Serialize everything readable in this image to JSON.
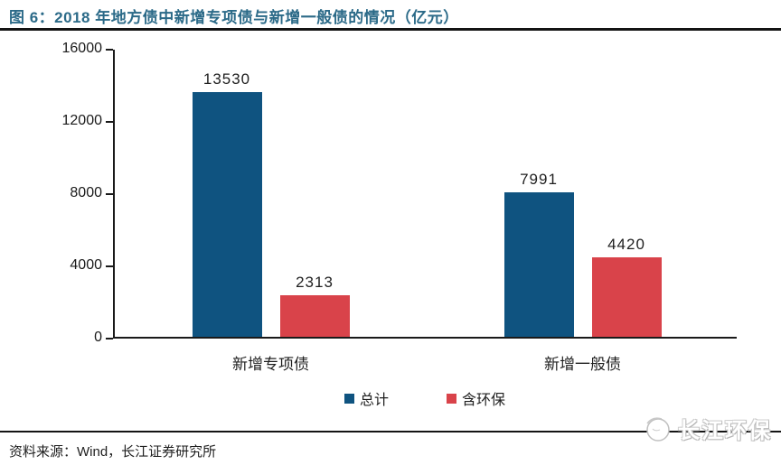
{
  "header": {
    "title": "图 6：2018 年地方债中新增专项债与新增一般债的情况（亿元）"
  },
  "footer": {
    "source": "资料来源：Wind，长江证券研究所",
    "watermark": "长江环保"
  },
  "colors": {
    "title": "#2b6a88",
    "series_total": "#0f5380",
    "series_env": "#d9434a",
    "axis": "#1a1a1a"
  },
  "chart_data": {
    "type": "bar",
    "categories": [
      "新增专项债",
      "新增一般债"
    ],
    "series": [
      {
        "name": "总计",
        "color": "#0f5380",
        "values": [
          13530,
          7991
        ]
      },
      {
        "name": "含环保",
        "color": "#d9434a",
        "values": [
          2313,
          4420
        ]
      }
    ],
    "title": "2018 年地方债中新增专项债与新增一般债的情况（亿元）",
    "xlabel": "",
    "ylabel": "",
    "ylim": [
      0,
      16000
    ],
    "yticks": [
      0,
      4000,
      8000,
      12000,
      16000
    ],
    "grid": false,
    "legend_position": "bottom",
    "data_labels": true
  }
}
